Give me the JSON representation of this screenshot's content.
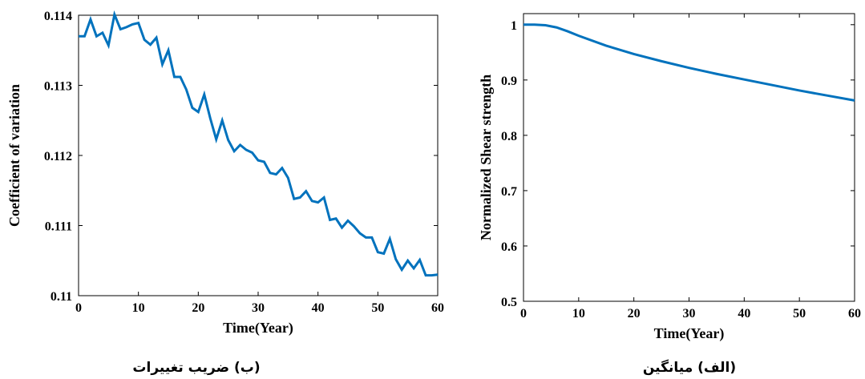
{
  "chart_data": [
    {
      "type": "line",
      "caption": "(ب) ضریب تغییرات",
      "xlabel": "Time(Year)",
      "ylabel": "Coefficient of variation",
      "color": "#0072bd",
      "x": [
        0,
        1,
        2,
        3,
        4,
        5,
        6,
        7,
        8,
        9,
        10,
        11,
        12,
        13,
        14,
        15,
        16,
        17,
        18,
        19,
        20,
        21,
        22,
        23,
        24,
        25,
        26,
        27,
        28,
        29,
        30,
        31,
        32,
        33,
        34,
        35,
        36,
        37,
        38,
        39,
        40,
        41,
        42,
        43,
        44,
        45,
        46,
        47,
        48,
        49,
        50,
        51,
        52,
        53,
        54,
        55,
        56,
        57,
        58,
        59,
        60
      ],
      "values": [
        0.1137,
        0.1137,
        0.11394,
        0.1137,
        0.11375,
        0.11357,
        0.11401,
        0.1138,
        0.11383,
        0.11387,
        0.11389,
        0.11365,
        0.11358,
        0.11368,
        0.1133,
        0.1135,
        0.11312,
        0.11312,
        0.11294,
        0.11268,
        0.11262,
        0.11287,
        0.11253,
        0.11223,
        0.1125,
        0.11222,
        0.11206,
        0.11215,
        0.11208,
        0.11204,
        0.11193,
        0.11191,
        0.11175,
        0.11173,
        0.11182,
        0.11168,
        0.11138,
        0.1114,
        0.11149,
        0.11135,
        0.11133,
        0.1114,
        0.11108,
        0.1111,
        0.11097,
        0.11107,
        0.11099,
        0.11089,
        0.11083,
        0.11083,
        0.11062,
        0.1106,
        0.11081,
        0.11052,
        0.11037,
        0.1105,
        0.11039,
        0.11051,
        0.11029,
        0.11029,
        0.1103
      ],
      "xlim": [
        0,
        60
      ],
      "xticks": [
        0,
        10,
        20,
        30,
        40,
        50,
        60
      ],
      "ylim": [
        0.11,
        0.114
      ],
      "yticks": [
        0.11,
        0.111,
        0.112,
        0.113,
        0.114
      ]
    },
    {
      "type": "line",
      "caption": "(الف) میانگین",
      "xlabel": "Time(Year)",
      "ylabel": "Normalized Shear strength",
      "color": "#0072bd",
      "x": [
        0,
        2,
        4,
        6,
        8,
        10,
        15,
        20,
        25,
        30,
        35,
        40,
        45,
        50,
        55,
        60
      ],
      "values": [
        1,
        1,
        0.999,
        0.995,
        0.988,
        0.98,
        0.962,
        0.947,
        0.934,
        0.922,
        0.911,
        0.901,
        0.891,
        0.881,
        0.872,
        0.863
      ],
      "xlim": [
        0,
        60
      ],
      "xticks": [
        0,
        10,
        20,
        30,
        40,
        50,
        60
      ],
      "ylim": [
        0.5,
        1.02
      ],
      "yticks": [
        0.5,
        0.6,
        0.7,
        0.8,
        0.9,
        1
      ]
    }
  ]
}
